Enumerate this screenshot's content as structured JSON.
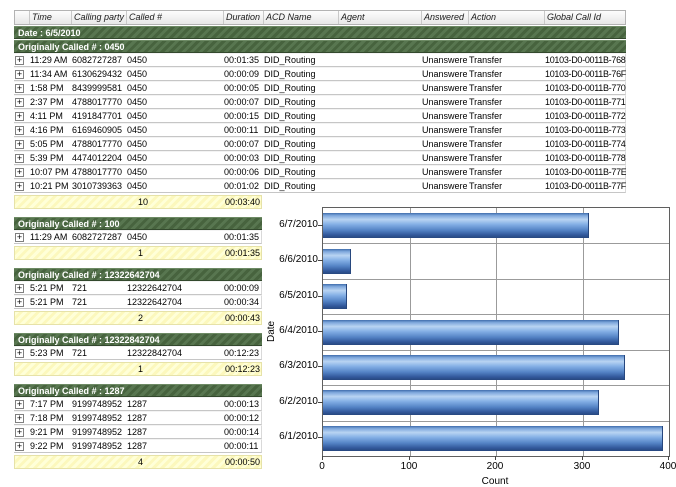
{
  "report": {
    "expand_glyph": "+",
    "columns": [
      {
        "key": "expand",
        "label": ""
      },
      {
        "key": "time",
        "label": "Time"
      },
      {
        "key": "calling",
        "label": "Calling party #"
      },
      {
        "key": "called",
        "label": "Called #"
      },
      {
        "key": "duration",
        "label": "Duration"
      },
      {
        "key": "acd",
        "label": "ACD Name"
      },
      {
        "key": "agent",
        "label": "Agent"
      },
      {
        "key": "answered",
        "label": "Answered"
      },
      {
        "key": "action",
        "label": "Action"
      },
      {
        "key": "global_id",
        "label": "Global Call Id"
      }
    ],
    "date_band": "Date : 6/5/2010",
    "groups": [
      {
        "title": "Originally Called # : 0450",
        "wide": true,
        "rows": [
          {
            "time": "11:29 AM",
            "calling": "6082727287",
            "called": "0450",
            "duration": "00:01:35",
            "acd": "DID_Routing",
            "agent": "",
            "answered": "Unanswered",
            "action": "Transfer",
            "global_id": "10103-D0-0011B-768"
          },
          {
            "time": "11:34 AM",
            "calling": "6130629432",
            "called": "0450",
            "duration": "00:00:09",
            "acd": "DID_Routing",
            "agent": "",
            "answered": "Unanswered",
            "action": "Transfer",
            "global_id": "10103-D0-0011B-76F"
          },
          {
            "time": "1:58 PM",
            "calling": "8439999581",
            "called": "0450",
            "duration": "00:00:05",
            "acd": "DID_Routing",
            "agent": "",
            "answered": "Unanswered",
            "action": "Transfer",
            "global_id": "10103-D0-0011B-770"
          },
          {
            "time": "2:37 PM",
            "calling": "4788017770",
            "called": "0450",
            "duration": "00:00:07",
            "acd": "DID_Routing",
            "agent": "",
            "answered": "Unanswered",
            "action": "Transfer",
            "global_id": "10103-D0-0011B-771"
          },
          {
            "time": "4:11 PM",
            "calling": "4191847701",
            "called": "0450",
            "duration": "00:00:15",
            "acd": "DID_Routing",
            "agent": "",
            "answered": "Unanswered",
            "action": "Transfer",
            "global_id": "10103-D0-0011B-772"
          },
          {
            "time": "4:16 PM",
            "calling": "6169460905",
            "called": "0450",
            "duration": "00:00:11",
            "acd": "DID_Routing",
            "agent": "",
            "answered": "Unanswered",
            "action": "Transfer",
            "global_id": "10103-D0-0011B-773"
          },
          {
            "time": "5:05 PM",
            "calling": "4788017770",
            "called": "0450",
            "duration": "00:00:07",
            "acd": "DID_Routing",
            "agent": "",
            "answered": "Unanswered",
            "action": "Transfer",
            "global_id": "10103-D0-0011B-774"
          },
          {
            "time": "5:39 PM",
            "calling": "4474012204",
            "called": "0450",
            "duration": "00:00:03",
            "acd": "DID_Routing",
            "agent": "",
            "answered": "Unanswered",
            "action": "Transfer",
            "global_id": "10103-D0-0011B-778"
          },
          {
            "time": "10:07 PM",
            "calling": "4788017770",
            "called": "0450",
            "duration": "00:00:06",
            "acd": "DID_Routing",
            "agent": "",
            "answered": "Unanswered",
            "action": "Transfer",
            "global_id": "10103-D0-0011B-77E"
          },
          {
            "time": "10:21 PM",
            "calling": "3010739363",
            "called": "0450",
            "duration": "00:01:02",
            "acd": "DID_Routing",
            "agent": "",
            "answered": "Unanswered",
            "action": "Transfer",
            "global_id": "10103-D0-0011B-77F"
          }
        ],
        "summary": {
          "count": "10",
          "duration": "00:03:40"
        }
      },
      {
        "title": "Originally Called # : 100",
        "wide": false,
        "rows": [
          {
            "time": "11:29 AM",
            "calling": "6082727287",
            "called": "0450",
            "duration": "00:01:35"
          }
        ],
        "summary": {
          "count": "1",
          "duration": "00:01:35"
        }
      },
      {
        "title": "Originally Called # : 12322642704",
        "wide": false,
        "rows": [
          {
            "time": "5:21 PM",
            "calling": "721",
            "called": "12322642704",
            "duration": "00:00:09"
          },
          {
            "time": "5:21 PM",
            "calling": "721",
            "called": "12322642704",
            "duration": "00:00:34"
          }
        ],
        "summary": {
          "count": "2",
          "duration": "00:00:43"
        }
      },
      {
        "title": "Originally Called # : 12322842704",
        "wide": false,
        "rows": [
          {
            "time": "5:23 PM",
            "calling": "721",
            "called": "12322842704",
            "duration": "00:12:23"
          }
        ],
        "summary": {
          "count": "1",
          "duration": "00:12:23"
        }
      },
      {
        "title": "Originally Called # : 1287",
        "wide": false,
        "rows": [
          {
            "time": "7:17 PM",
            "calling": "9199748952",
            "called": "1287",
            "duration": "00:00:13"
          },
          {
            "time": "7:18 PM",
            "calling": "9199748952",
            "called": "1287",
            "duration": "00:00:12"
          },
          {
            "time": "9:21 PM",
            "calling": "9199748952",
            "called": "1287",
            "duration": "00:00:14"
          },
          {
            "time": "9:22 PM",
            "calling": "9199748952",
            "called": "1287",
            "duration": "00:00:11"
          }
        ],
        "summary": {
          "count": "4",
          "duration": "00:00:50"
        }
      }
    ]
  },
  "chart_data": {
    "type": "bar",
    "orientation": "horizontal",
    "categories": [
      "6/7/2010",
      "6/6/2010",
      "6/5/2010",
      "6/4/2010",
      "6/3/2010",
      "6/2/2010",
      "6/1/2010"
    ],
    "values": [
      306,
      31,
      27,
      341,
      348,
      318,
      392
    ],
    "title": "",
    "xlabel": "Count",
    "ylabel": "Date",
    "xlim": [
      0,
      400
    ],
    "xticks": [
      0,
      100,
      200,
      300,
      400
    ],
    "grid": true,
    "legend": false
  },
  "colors": {
    "group_band_green": "#47633e",
    "summary_yellow": "#ffffcc",
    "bar_blue_light": "#b9d4f2",
    "bar_blue_dark": "#27477e",
    "grid_gray": "#9b9b9b"
  }
}
